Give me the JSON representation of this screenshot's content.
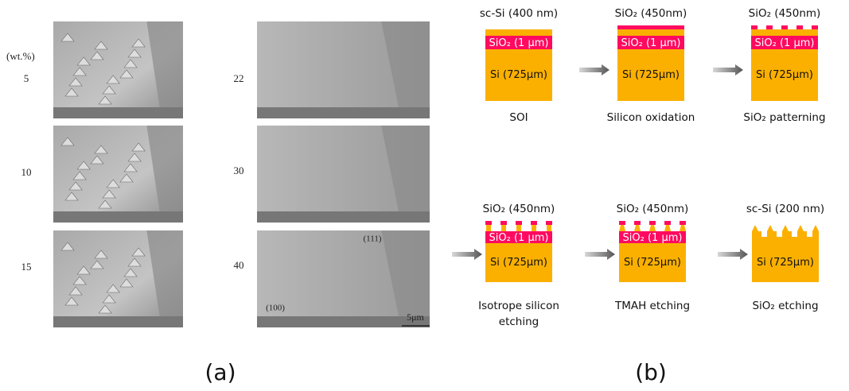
{
  "panel_a": {
    "label": "(a)",
    "unit": "(wt.%)",
    "concentrations": [
      "5",
      "10",
      "15",
      "22",
      "30",
      "40"
    ],
    "plane_labels": [
      "(111)",
      "(100)"
    ],
    "scale_bar": "5μm"
  },
  "panel_b": {
    "label": "(b)",
    "steps": [
      {
        "top_label": "sc-Si (400 nm)",
        "layers": [
          "SiO₂ (1 µm)",
          "Si (725µm)"
        ],
        "caption": [
          "SOI"
        ]
      },
      {
        "top_label": "SiO₂ (450nm)",
        "layers": [
          "SiO₂ (1 µm)",
          "Si (725µm)"
        ],
        "caption": [
          "Silicon oxidation"
        ]
      },
      {
        "top_label": "SiO₂ (450nm)",
        "layers": [
          "SiO₂ (1 µm)",
          "Si (725µm)"
        ],
        "caption": [
          "SiO₂ patterning"
        ]
      },
      {
        "top_label": "SiO₂ (450nm)",
        "layers": [
          "SiO₂ (1 µm)",
          "Si (725µm)"
        ],
        "caption": [
          "Isotrope silicon",
          "etching"
        ]
      },
      {
        "top_label": "SiO₂ (450nm)",
        "layers": [
          "SiO₂ (1 µm)",
          "Si (725µm)"
        ],
        "caption": [
          "TMAH etching"
        ]
      },
      {
        "top_label": "sc-Si (200 nm)",
        "layers": [
          "Si (725µm)"
        ],
        "caption": [
          "SiO₂ etching"
        ]
      }
    ]
  }
}
